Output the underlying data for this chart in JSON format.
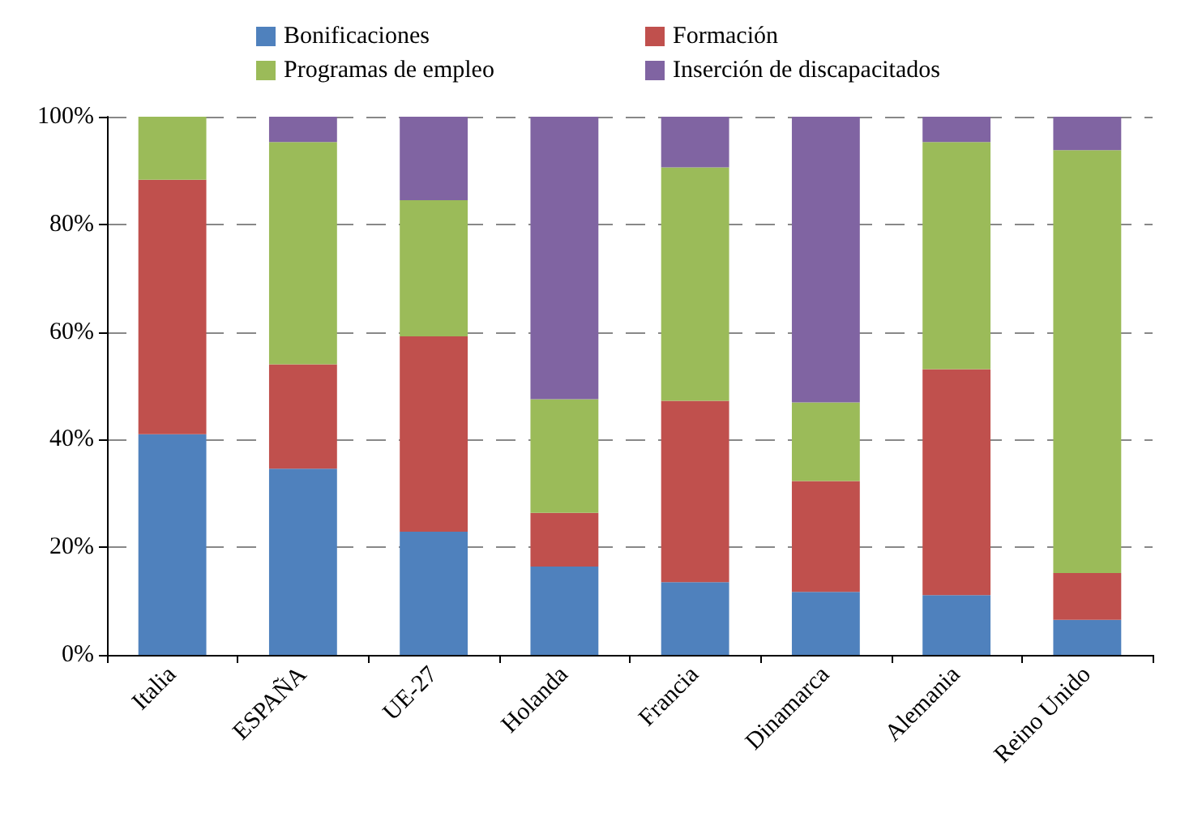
{
  "chart_data": {
    "type": "bar",
    "stacked": true,
    "categories": [
      "Italia",
      "ESPAÑA",
      "UE-27",
      "Holanda",
      "Francia",
      "Dinamarca",
      "Alemania",
      "Reino Unido"
    ],
    "series": [
      {
        "name": "Bonificaciones",
        "color": "#4f81bd",
        "values": [
          41.0,
          34.6,
          22.9,
          16.4,
          13.5,
          11.7,
          11.1,
          6.5
        ]
      },
      {
        "name": "Formación",
        "color": "#c0504d",
        "values": [
          47.3,
          19.4,
          36.3,
          10.0,
          33.7,
          20.6,
          42.0,
          8.7
        ]
      },
      {
        "name": "Programas de empleo",
        "color": "#9bbb59",
        "values": [
          11.7,
          41.3,
          25.3,
          21.1,
          43.4,
          14.6,
          42.2,
          78.6
        ]
      },
      {
        "name": "Inserción de discapacitados",
        "color": "#8064a2",
        "values": [
          0,
          4.7,
          15.5,
          52.5,
          9.4,
          53.1,
          4.7,
          6.2
        ]
      }
    ],
    "ylim": [
      0,
      100
    ],
    "yticks": [
      {
        "value": 0,
        "label": "0%"
      },
      {
        "value": 20,
        "label": "20%"
      },
      {
        "value": 40,
        "label": "40%"
      },
      {
        "value": 60,
        "label": "60%"
      },
      {
        "value": 80,
        "label": "80%"
      },
      {
        "value": 100,
        "label": "100%"
      }
    ],
    "grid": "y",
    "legend": "top"
  }
}
